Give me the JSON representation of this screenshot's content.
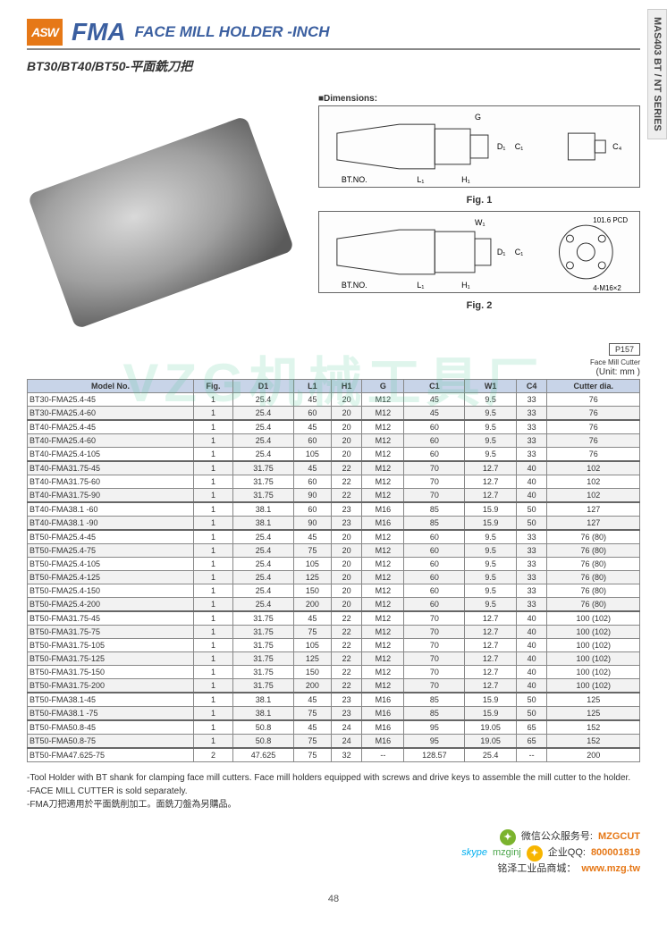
{
  "header": {
    "logo": "ASW",
    "title_main": "FMA",
    "title_sub": "FACE MILL HOLDER -INCH",
    "series_tab": "MAS403 BT / NT SERIES",
    "subtitle": "BT30/BT40/BT50-平面銑刀把"
  },
  "diagrams": {
    "dimensions_label": "■Dimensions:",
    "btno_label": "BT.NO.",
    "fig1_label": "Fig. 1",
    "fig2_label": "Fig. 2",
    "pcd_label": "101.6 PCD",
    "bolt_label": "4-M16×2",
    "dim_G": "G",
    "dim_D1": "D₁",
    "dim_C1": "C₁",
    "dim_C4": "C₄",
    "dim_L1": "L₁",
    "dim_H1": "H₁",
    "dim_W1": "W₁"
  },
  "table_meta": {
    "ref_box": "P157",
    "ref_caption": "Face Mill Cutter",
    "unit_label": "(Unit: mm )"
  },
  "columns": [
    "Model No.",
    "Fig.",
    "D1",
    "L1",
    "H1",
    "G",
    "C1",
    "W1",
    "C4",
    "Cutter dia."
  ],
  "rows": [
    [
      "BT30-FMA25.4-45",
      "1",
      "25.4",
      "45",
      "20",
      "M12",
      "45",
      "9.5",
      "33",
      "76"
    ],
    [
      "BT30-FMA25.4-60",
      "1",
      "25.4",
      "60",
      "20",
      "M12",
      "45",
      "9.5",
      "33",
      "76"
    ],
    [
      "BT40-FMA25.4-45",
      "1",
      "25.4",
      "45",
      "20",
      "M12",
      "60",
      "9.5",
      "33",
      "76"
    ],
    [
      "BT40-FMA25.4-60",
      "1",
      "25.4",
      "60",
      "20",
      "M12",
      "60",
      "9.5",
      "33",
      "76"
    ],
    [
      "BT40-FMA25.4-105",
      "1",
      "25.4",
      "105",
      "20",
      "M12",
      "60",
      "9.5",
      "33",
      "76"
    ],
    [
      "BT40-FMA31.75-45",
      "1",
      "31.75",
      "45",
      "22",
      "M12",
      "70",
      "12.7",
      "40",
      "102"
    ],
    [
      "BT40-FMA31.75-60",
      "1",
      "31.75",
      "60",
      "22",
      "M12",
      "70",
      "12.7",
      "40",
      "102"
    ],
    [
      "BT40-FMA31.75-90",
      "1",
      "31.75",
      "90",
      "22",
      "M12",
      "70",
      "12.7",
      "40",
      "102"
    ],
    [
      "BT40-FMA38.1 -60",
      "1",
      "38.1",
      "60",
      "23",
      "M16",
      "85",
      "15.9",
      "50",
      "127"
    ],
    [
      "BT40-FMA38.1 -90",
      "1",
      "38.1",
      "90",
      "23",
      "M16",
      "85",
      "15.9",
      "50",
      "127"
    ],
    [
      "BT50-FMA25.4-45",
      "1",
      "25.4",
      "45",
      "20",
      "M12",
      "60",
      "9.5",
      "33",
      "76 (80)"
    ],
    [
      "BT50-FMA25.4-75",
      "1",
      "25.4",
      "75",
      "20",
      "M12",
      "60",
      "9.5",
      "33",
      "76 (80)"
    ],
    [
      "BT50-FMA25.4-105",
      "1",
      "25.4",
      "105",
      "20",
      "M12",
      "60",
      "9.5",
      "33",
      "76 (80)"
    ],
    [
      "BT50-FMA25.4-125",
      "1",
      "25.4",
      "125",
      "20",
      "M12",
      "60",
      "9.5",
      "33",
      "76 (80)"
    ],
    [
      "BT50-FMA25.4-150",
      "1",
      "25.4",
      "150",
      "20",
      "M12",
      "60",
      "9.5",
      "33",
      "76 (80)"
    ],
    [
      "BT50-FMA25.4-200",
      "1",
      "25.4",
      "200",
      "20",
      "M12",
      "60",
      "9.5",
      "33",
      "76 (80)"
    ],
    [
      "BT50-FMA31.75-45",
      "1",
      "31.75",
      "45",
      "22",
      "M12",
      "70",
      "12.7",
      "40",
      "100 (102)"
    ],
    [
      "BT50-FMA31.75-75",
      "1",
      "31.75",
      "75",
      "22",
      "M12",
      "70",
      "12.7",
      "40",
      "100 (102)"
    ],
    [
      "BT50-FMA31.75-105",
      "1",
      "31.75",
      "105",
      "22",
      "M12",
      "70",
      "12.7",
      "40",
      "100 (102)"
    ],
    [
      "BT50-FMA31.75-125",
      "1",
      "31.75",
      "125",
      "22",
      "M12",
      "70",
      "12.7",
      "40",
      "100 (102)"
    ],
    [
      "BT50-FMA31.75-150",
      "1",
      "31.75",
      "150",
      "22",
      "M12",
      "70",
      "12.7",
      "40",
      "100 (102)"
    ],
    [
      "BT50-FMA31.75-200",
      "1",
      "31.75",
      "200",
      "22",
      "M12",
      "70",
      "12.7",
      "40",
      "100 (102)"
    ],
    [
      "BT50-FMA38.1-45",
      "1",
      "38.1",
      "45",
      "23",
      "M16",
      "85",
      "15.9",
      "50",
      "125"
    ],
    [
      "BT50-FMA38.1 -75",
      "1",
      "38.1",
      "75",
      "23",
      "M16",
      "85",
      "15.9",
      "50",
      "125"
    ],
    [
      "BT50-FMA50.8-45",
      "1",
      "50.8",
      "45",
      "24",
      "M16",
      "95",
      "19.05",
      "65",
      "152"
    ],
    [
      "BT50-FMA50.8-75",
      "1",
      "50.8",
      "75",
      "24",
      "M16",
      "95",
      "19.05",
      "65",
      "152"
    ],
    [
      "BT50-FMA47.625-75",
      "2",
      "47.625",
      "75",
      "32",
      "--",
      "128.57",
      "25.4",
      "--",
      "200"
    ]
  ],
  "section_breaks_at": [
    2,
    5,
    8,
    10,
    16,
    22,
    24,
    26
  ],
  "notes": {
    "line1": "-Tool Holder with BT shank for clamping face mill cutters. Face mill holders equipped with screws and drive keys to assemble the mill cutter to the holder.",
    "line2": "-FACE MILL CUTTER is sold separately.",
    "line3": "-FMA刀把適用於平面銑削加工。面銑刀盤為另購品。"
  },
  "watermark": "VZG机械工具厂",
  "footer": {
    "wechat_label": "微信公众服务号:",
    "wechat_id": "MZGCUT",
    "qq_label": "企业QQ:",
    "qq_id": "800001819",
    "skype_label": "skype",
    "skype_id": "mzginj",
    "site_label": "铭泽工业品商城：",
    "site_url": "www.mzg.tw"
  },
  "page_num": "48"
}
